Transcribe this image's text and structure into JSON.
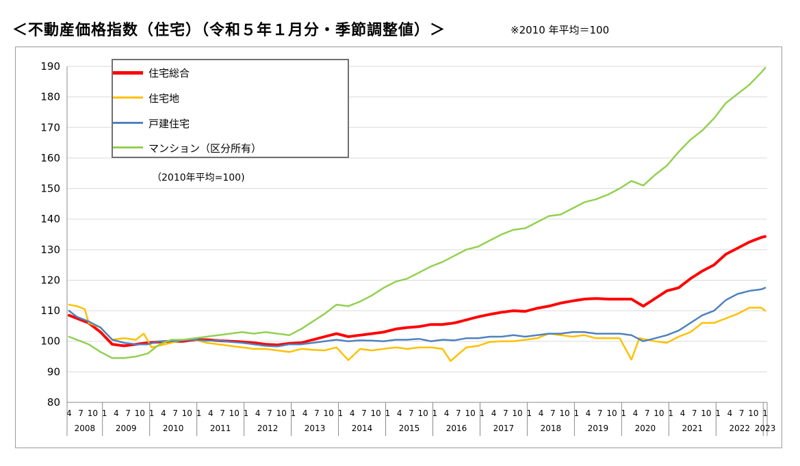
{
  "header": {
    "title": "＜不動産価格指数（住宅）（令和５年１月分・季節調整値）＞",
    "note": "※2010 年平均＝100"
  },
  "chart_data": {
    "type": "line",
    "base_note": "（2010年平均=100)",
    "ylim": [
      80,
      190
    ],
    "yticks": [
      80,
      90,
      100,
      110,
      120,
      130,
      140,
      150,
      160,
      170,
      180,
      190
    ],
    "grid": true,
    "legend_placement": "top-left",
    "x_start": "2008-04",
    "x_end": "2023-01",
    "month_tick_labels": [
      "1",
      "4",
      "7",
      "10"
    ],
    "years": [
      "2008",
      "2009",
      "2010",
      "2011",
      "2012",
      "2013",
      "2014",
      "2015",
      "2016",
      "2017",
      "2018",
      "2019",
      "2020",
      "2021",
      "2022",
      "2023"
    ],
    "series": [
      {
        "name": "住宅総合",
        "color": "#ff0000",
        "width": 4,
        "anchors": [
          [
            "2008-04",
            108.5
          ],
          [
            "2008-06",
            107.5
          ],
          [
            "2008-09",
            106
          ],
          [
            "2008-12",
            103
          ],
          [
            "2009-03",
            99
          ],
          [
            "2009-06",
            98.5
          ],
          [
            "2009-09",
            99
          ],
          [
            "2009-12",
            99.5
          ],
          [
            "2010-03",
            99.8
          ],
          [
            "2010-06",
            100
          ],
          [
            "2010-09",
            100
          ],
          [
            "2010-12",
            100.5
          ],
          [
            "2011-03",
            100.5
          ],
          [
            "2011-06",
            100.2
          ],
          [
            "2011-09",
            100
          ],
          [
            "2011-12",
            99.8
          ],
          [
            "2012-03",
            99.5
          ],
          [
            "2012-06",
            99
          ],
          [
            "2012-09",
            98.8
          ],
          [
            "2012-12",
            99.3
          ],
          [
            "2013-03",
            99.5
          ],
          [
            "2013-06",
            100.5
          ],
          [
            "2013-09",
            101.5
          ],
          [
            "2013-12",
            102.5
          ],
          [
            "2014-03",
            101.5
          ],
          [
            "2014-06",
            102
          ],
          [
            "2014-09",
            102.5
          ],
          [
            "2014-12",
            103
          ],
          [
            "2015-03",
            104
          ],
          [
            "2015-06",
            104.5
          ],
          [
            "2015-09",
            104.8
          ],
          [
            "2015-12",
            105.5
          ],
          [
            "2016-03",
            105.5
          ],
          [
            "2016-06",
            106
          ],
          [
            "2016-09",
            107
          ],
          [
            "2016-12",
            108
          ],
          [
            "2017-03",
            108.8
          ],
          [
            "2017-06",
            109.5
          ],
          [
            "2017-09",
            110
          ],
          [
            "2017-12",
            109.8
          ],
          [
            "2018-03",
            110.8
          ],
          [
            "2018-06",
            111.5
          ],
          [
            "2018-09",
            112.5
          ],
          [
            "2018-12",
            113.2
          ],
          [
            "2019-03",
            113.8
          ],
          [
            "2019-06",
            114
          ],
          [
            "2019-09",
            113.8
          ],
          [
            "2019-12",
            113.8
          ],
          [
            "2020-03",
            113.8
          ],
          [
            "2020-06",
            111.5
          ],
          [
            "2020-09",
            114
          ],
          [
            "2020-12",
            116.5
          ],
          [
            "2021-03",
            117.5
          ],
          [
            "2021-06",
            120.5
          ],
          [
            "2021-09",
            123
          ],
          [
            "2021-12",
            125
          ],
          [
            "2022-03",
            128.5
          ],
          [
            "2022-06",
            130.5
          ],
          [
            "2022-09",
            132.5
          ],
          [
            "2022-12",
            134
          ],
          [
            "2023-01",
            134.3
          ]
        ]
      },
      {
        "name": "住宅地",
        "color": "#ffc000",
        "width": 2.5,
        "anchors": [
          [
            "2008-04",
            112
          ],
          [
            "2008-06",
            111.5
          ],
          [
            "2008-08",
            110.5
          ],
          [
            "2008-09",
            106
          ],
          [
            "2008-12",
            104.5
          ],
          [
            "2009-03",
            100.5
          ],
          [
            "2009-06",
            101
          ],
          [
            "2009-09",
            100.5
          ],
          [
            "2009-11",
            102.5
          ],
          [
            "2010-01",
            98
          ],
          [
            "2010-06",
            99.5
          ],
          [
            "2010-09",
            100.5
          ],
          [
            "2010-12",
            100.5
          ],
          [
            "2011-03",
            99.5
          ],
          [
            "2011-06",
            99
          ],
          [
            "2011-09",
            98.5
          ],
          [
            "2011-12",
            98
          ],
          [
            "2012-03",
            97.5
          ],
          [
            "2012-06",
            97.5
          ],
          [
            "2012-09",
            97
          ],
          [
            "2012-12",
            96.5
          ],
          [
            "2013-03",
            97.5
          ],
          [
            "2013-06",
            97.2
          ],
          [
            "2013-09",
            97
          ],
          [
            "2013-12",
            98
          ],
          [
            "2014-03",
            93.8
          ],
          [
            "2014-06",
            97.5
          ],
          [
            "2014-09",
            97
          ],
          [
            "2014-12",
            97.5
          ],
          [
            "2015-03",
            98
          ],
          [
            "2015-06",
            97.5
          ],
          [
            "2015-09",
            98
          ],
          [
            "2015-12",
            98
          ],
          [
            "2016-03",
            97.5
          ],
          [
            "2016-05",
            93.5
          ],
          [
            "2016-09",
            98
          ],
          [
            "2016-12",
            98.5
          ],
          [
            "2017-03",
            99.8
          ],
          [
            "2017-06",
            100
          ],
          [
            "2017-09",
            100
          ],
          [
            "2017-12",
            100.5
          ],
          [
            "2018-03",
            101
          ],
          [
            "2018-06",
            102.5
          ],
          [
            "2018-09",
            102
          ],
          [
            "2018-12",
            101.5
          ],
          [
            "2019-03",
            102
          ],
          [
            "2019-06",
            101
          ],
          [
            "2019-09",
            101
          ],
          [
            "2019-12",
            101
          ],
          [
            "2020-03",
            94
          ],
          [
            "2020-05",
            101
          ],
          [
            "2020-09",
            100
          ],
          [
            "2020-12",
            99.5
          ],
          [
            "2021-03",
            101.5
          ],
          [
            "2021-06",
            103
          ],
          [
            "2021-09",
            106
          ],
          [
            "2021-12",
            106
          ],
          [
            "2022-03",
            107.5
          ],
          [
            "2022-06",
            109
          ],
          [
            "2022-09",
            111
          ],
          [
            "2022-12",
            111
          ],
          [
            "2023-01",
            110
          ]
        ]
      },
      {
        "name": "戸建住宅",
        "color": "#4f81bd",
        "width": 2.5,
        "anchors": [
          [
            "2008-04",
            110
          ],
          [
            "2008-06",
            108
          ],
          [
            "2008-09",
            106.5
          ],
          [
            "2008-12",
            104.5
          ],
          [
            "2009-03",
            100.5
          ],
          [
            "2009-06",
            99.5
          ],
          [
            "2009-09",
            99
          ],
          [
            "2009-12",
            99
          ],
          [
            "2010-03",
            100
          ],
          [
            "2010-06",
            100
          ],
          [
            "2010-09",
            100.3
          ],
          [
            "2010-12",
            100.5
          ],
          [
            "2011-03",
            100.2
          ],
          [
            "2011-06",
            100.3
          ],
          [
            "2011-09",
            99.8
          ],
          [
            "2011-12",
            99.5
          ],
          [
            "2012-03",
            99
          ],
          [
            "2012-06",
            98.5
          ],
          [
            "2012-09",
            98.3
          ],
          [
            "2012-12",
            99
          ],
          [
            "2013-03",
            99
          ],
          [
            "2013-06",
            99.5
          ],
          [
            "2013-09",
            100
          ],
          [
            "2013-12",
            100.5
          ],
          [
            "2014-03",
            100
          ],
          [
            "2014-06",
            100.3
          ],
          [
            "2014-09",
            100.2
          ],
          [
            "2014-12",
            100
          ],
          [
            "2015-03",
            100.5
          ],
          [
            "2015-06",
            100.5
          ],
          [
            "2015-09",
            100.8
          ],
          [
            "2015-12",
            100
          ],
          [
            "2016-03",
            100.5
          ],
          [
            "2016-06",
            100.3
          ],
          [
            "2016-09",
            101
          ],
          [
            "2016-12",
            101
          ],
          [
            "2017-03",
            101.5
          ],
          [
            "2017-06",
            101.5
          ],
          [
            "2017-09",
            102
          ],
          [
            "2017-12",
            101.5
          ],
          [
            "2018-03",
            102
          ],
          [
            "2018-06",
            102.5
          ],
          [
            "2018-09",
            102.5
          ],
          [
            "2018-12",
            103
          ],
          [
            "2019-03",
            103
          ],
          [
            "2019-06",
            102.5
          ],
          [
            "2019-09",
            102.5
          ],
          [
            "2019-12",
            102.5
          ],
          [
            "2020-03",
            102
          ],
          [
            "2020-06",
            100
          ],
          [
            "2020-09",
            101
          ],
          [
            "2020-12",
            102
          ],
          [
            "2021-03",
            103.5
          ],
          [
            "2021-06",
            106
          ],
          [
            "2021-09",
            108.5
          ],
          [
            "2021-12",
            110
          ],
          [
            "2022-03",
            113.5
          ],
          [
            "2022-06",
            115.5
          ],
          [
            "2022-09",
            116.5
          ],
          [
            "2022-12",
            117
          ],
          [
            "2023-01",
            117.5
          ]
        ]
      },
      {
        "name": "マンション（区分所有）",
        "color": "#92d050",
        "width": 2.5,
        "anchors": [
          [
            "2008-04",
            101.5
          ],
          [
            "2008-06",
            100.5
          ],
          [
            "2008-09",
            99
          ],
          [
            "2008-12",
            96.5
          ],
          [
            "2009-03",
            94.5
          ],
          [
            "2009-06",
            94.5
          ],
          [
            "2009-09",
            95
          ],
          [
            "2009-12",
            96
          ],
          [
            "2010-03",
            99
          ],
          [
            "2010-06",
            100.5
          ],
          [
            "2010-09",
            100.5
          ],
          [
            "2010-12",
            101
          ],
          [
            "2011-03",
            101.5
          ],
          [
            "2011-06",
            102
          ],
          [
            "2011-09",
            102.5
          ],
          [
            "2011-12",
            103
          ],
          [
            "2012-03",
            102.5
          ],
          [
            "2012-06",
            103
          ],
          [
            "2012-09",
            102.5
          ],
          [
            "2012-12",
            102
          ],
          [
            "2013-03",
            104
          ],
          [
            "2013-06",
            106.5
          ],
          [
            "2013-09",
            109
          ],
          [
            "2013-12",
            112
          ],
          [
            "2014-03",
            111.5
          ],
          [
            "2014-06",
            113
          ],
          [
            "2014-09",
            115
          ],
          [
            "2014-12",
            117.5
          ],
          [
            "2015-03",
            119.5
          ],
          [
            "2015-06",
            120.5
          ],
          [
            "2015-09",
            122.5
          ],
          [
            "2015-12",
            124.5
          ],
          [
            "2016-03",
            126
          ],
          [
            "2016-06",
            128
          ],
          [
            "2016-09",
            130
          ],
          [
            "2016-12",
            131
          ],
          [
            "2017-03",
            133
          ],
          [
            "2017-06",
            135
          ],
          [
            "2017-09",
            136.5
          ],
          [
            "2017-12",
            137
          ],
          [
            "2018-03",
            139
          ],
          [
            "2018-06",
            141
          ],
          [
            "2018-09",
            141.5
          ],
          [
            "2018-12",
            143.5
          ],
          [
            "2019-03",
            145.5
          ],
          [
            "2019-06",
            146.5
          ],
          [
            "2019-09",
            148
          ],
          [
            "2019-12",
            150
          ],
          [
            "2020-03",
            152.5
          ],
          [
            "2020-06",
            151
          ],
          [
            "2020-09",
            154.5
          ],
          [
            "2020-12",
            157.5
          ],
          [
            "2021-03",
            162
          ],
          [
            "2021-06",
            166
          ],
          [
            "2021-09",
            169
          ],
          [
            "2021-12",
            173
          ],
          [
            "2022-03",
            178
          ],
          [
            "2022-06",
            181
          ],
          [
            "2022-09",
            184
          ],
          [
            "2022-12",
            188
          ],
          [
            "2023-01",
            189.5
          ]
        ]
      }
    ]
  }
}
